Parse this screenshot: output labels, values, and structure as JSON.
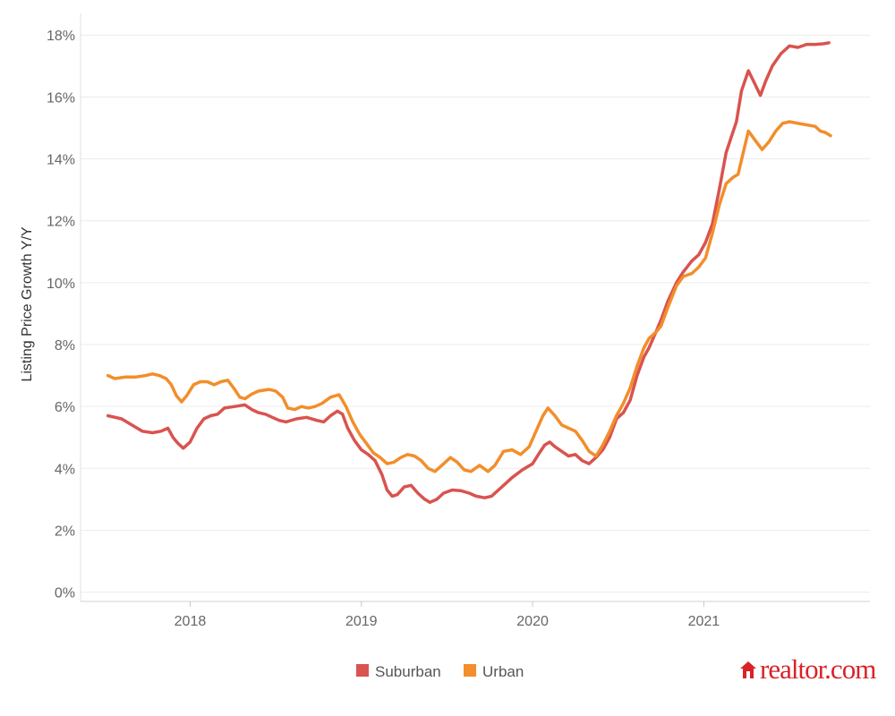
{
  "chart_data": {
    "type": "line",
    "title": "",
    "xlabel": "",
    "ylabel": "Listing Price Growth Y/Y",
    "xlim": [
      2017.36,
      2021.97
    ],
    "ylim": [
      -0.3,
      18.7
    ],
    "x_ticks": [
      {
        "value": 2018.0,
        "label": "2018"
      },
      {
        "value": 2019.0,
        "label": "2019"
      },
      {
        "value": 2020.0,
        "label": "2020"
      },
      {
        "value": 2021.0,
        "label": "2021"
      }
    ],
    "y_ticks": [
      {
        "value": 0,
        "label": "0%"
      },
      {
        "value": 2,
        "label": "2%"
      },
      {
        "value": 4,
        "label": "4%"
      },
      {
        "value": 6,
        "label": "6%"
      },
      {
        "value": 8,
        "label": "8%"
      },
      {
        "value": 10,
        "label": "10%"
      },
      {
        "value": 12,
        "label": "12%"
      },
      {
        "value": 14,
        "label": "14%"
      },
      {
        "value": 16,
        "label": "16%"
      },
      {
        "value": 18,
        "label": "18%"
      }
    ],
    "grid": true,
    "legend": "bottom-center",
    "series": [
      {
        "name": "Suburban",
        "color": "#d9534f",
        "points": [
          [
            2017.52,
            5.7
          ],
          [
            2017.6,
            5.6
          ],
          [
            2017.66,
            5.4
          ],
          [
            2017.72,
            5.2
          ],
          [
            2017.78,
            5.15
          ],
          [
            2017.83,
            5.2
          ],
          [
            2017.87,
            5.3
          ],
          [
            2017.9,
            5.0
          ],
          [
            2017.93,
            4.8
          ],
          [
            2017.96,
            4.65
          ],
          [
            2018.0,
            4.85
          ],
          [
            2018.04,
            5.3
          ],
          [
            2018.08,
            5.6
          ],
          [
            2018.12,
            5.7
          ],
          [
            2018.16,
            5.75
          ],
          [
            2018.2,
            5.95
          ],
          [
            2018.26,
            6.0
          ],
          [
            2018.32,
            6.05
          ],
          [
            2018.36,
            5.9
          ],
          [
            2018.4,
            5.8
          ],
          [
            2018.44,
            5.75
          ],
          [
            2018.48,
            5.65
          ],
          [
            2018.52,
            5.55
          ],
          [
            2018.56,
            5.5
          ],
          [
            2018.62,
            5.6
          ],
          [
            2018.68,
            5.65
          ],
          [
            2018.74,
            5.55
          ],
          [
            2018.78,
            5.5
          ],
          [
            2018.82,
            5.7
          ],
          [
            2018.86,
            5.85
          ],
          [
            2018.89,
            5.75
          ],
          [
            2018.92,
            5.3
          ],
          [
            2018.96,
            4.9
          ],
          [
            2019.0,
            4.6
          ],
          [
            2019.04,
            4.45
          ],
          [
            2019.08,
            4.25
          ],
          [
            2019.12,
            3.8
          ],
          [
            2019.15,
            3.3
          ],
          [
            2019.18,
            3.1
          ],
          [
            2019.21,
            3.15
          ],
          [
            2019.25,
            3.4
          ],
          [
            2019.29,
            3.45
          ],
          [
            2019.33,
            3.2
          ],
          [
            2019.37,
            3.0
          ],
          [
            2019.4,
            2.9
          ],
          [
            2019.44,
            3.0
          ],
          [
            2019.48,
            3.2
          ],
          [
            2019.53,
            3.3
          ],
          [
            2019.58,
            3.28
          ],
          [
            2019.63,
            3.2
          ],
          [
            2019.67,
            3.1
          ],
          [
            2019.72,
            3.05
          ],
          [
            2019.76,
            3.1
          ],
          [
            2019.82,
            3.4
          ],
          [
            2019.88,
            3.7
          ],
          [
            2019.94,
            3.95
          ],
          [
            2020.0,
            4.15
          ],
          [
            2020.04,
            4.5
          ],
          [
            2020.07,
            4.75
          ],
          [
            2020.1,
            4.85
          ],
          [
            2020.13,
            4.7
          ],
          [
            2020.17,
            4.55
          ],
          [
            2020.21,
            4.4
          ],
          [
            2020.25,
            4.45
          ],
          [
            2020.29,
            4.25
          ],
          [
            2020.33,
            4.15
          ],
          [
            2020.37,
            4.35
          ],
          [
            2020.41,
            4.6
          ],
          [
            2020.45,
            5.0
          ],
          [
            2020.49,
            5.6
          ],
          [
            2020.53,
            5.8
          ],
          [
            2020.57,
            6.2
          ],
          [
            2020.61,
            7.0
          ],
          [
            2020.65,
            7.6
          ],
          [
            2020.68,
            7.9
          ],
          [
            2020.72,
            8.4
          ],
          [
            2020.75,
            8.8
          ],
          [
            2020.79,
            9.4
          ],
          [
            2020.84,
            10.0
          ],
          [
            2020.88,
            10.35
          ],
          [
            2020.93,
            10.7
          ],
          [
            2020.97,
            10.9
          ],
          [
            2021.01,
            11.3
          ],
          [
            2021.05,
            11.9
          ],
          [
            2021.09,
            13.0
          ],
          [
            2021.13,
            14.2
          ],
          [
            2021.16,
            14.7
          ],
          [
            2021.19,
            15.2
          ],
          [
            2021.22,
            16.2
          ],
          [
            2021.26,
            16.85
          ],
          [
            2021.3,
            16.4
          ],
          [
            2021.33,
            16.05
          ],
          [
            2021.36,
            16.5
          ],
          [
            2021.4,
            17.0
          ],
          [
            2021.45,
            17.4
          ],
          [
            2021.5,
            17.65
          ],
          [
            2021.55,
            17.6
          ],
          [
            2021.6,
            17.7
          ],
          [
            2021.65,
            17.7
          ],
          [
            2021.7,
            17.72
          ],
          [
            2021.73,
            17.75
          ]
        ]
      },
      {
        "name": "Urban",
        "color": "#f28e2b",
        "points": [
          [
            2017.52,
            7.0
          ],
          [
            2017.56,
            6.9
          ],
          [
            2017.62,
            6.95
          ],
          [
            2017.68,
            6.95
          ],
          [
            2017.74,
            7.0
          ],
          [
            2017.78,
            7.05
          ],
          [
            2017.82,
            7.0
          ],
          [
            2017.86,
            6.9
          ],
          [
            2017.89,
            6.7
          ],
          [
            2017.92,
            6.35
          ],
          [
            2017.95,
            6.15
          ],
          [
            2017.98,
            6.35
          ],
          [
            2018.02,
            6.7
          ],
          [
            2018.06,
            6.8
          ],
          [
            2018.1,
            6.8
          ],
          [
            2018.14,
            6.7
          ],
          [
            2018.18,
            6.8
          ],
          [
            2018.22,
            6.85
          ],
          [
            2018.26,
            6.55
          ],
          [
            2018.29,
            6.3
          ],
          [
            2018.32,
            6.25
          ],
          [
            2018.36,
            6.4
          ],
          [
            2018.4,
            6.5
          ],
          [
            2018.46,
            6.55
          ],
          [
            2018.5,
            6.5
          ],
          [
            2018.54,
            6.3
          ],
          [
            2018.57,
            5.95
          ],
          [
            2018.61,
            5.9
          ],
          [
            2018.65,
            6.0
          ],
          [
            2018.69,
            5.95
          ],
          [
            2018.73,
            6.0
          ],
          [
            2018.77,
            6.1
          ],
          [
            2018.82,
            6.3
          ],
          [
            2018.87,
            6.38
          ],
          [
            2018.91,
            6.0
          ],
          [
            2018.95,
            5.5
          ],
          [
            2018.99,
            5.1
          ],
          [
            2019.03,
            4.8
          ],
          [
            2019.07,
            4.5
          ],
          [
            2019.11,
            4.35
          ],
          [
            2019.15,
            4.15
          ],
          [
            2019.19,
            4.2
          ],
          [
            2019.23,
            4.35
          ],
          [
            2019.27,
            4.45
          ],
          [
            2019.31,
            4.4
          ],
          [
            2019.35,
            4.25
          ],
          [
            2019.39,
            4.0
          ],
          [
            2019.43,
            3.9
          ],
          [
            2019.47,
            4.1
          ],
          [
            2019.52,
            4.35
          ],
          [
            2019.56,
            4.2
          ],
          [
            2019.6,
            3.95
          ],
          [
            2019.64,
            3.9
          ],
          [
            2019.69,
            4.1
          ],
          [
            2019.74,
            3.9
          ],
          [
            2019.78,
            4.1
          ],
          [
            2019.83,
            4.55
          ],
          [
            2019.88,
            4.6
          ],
          [
            2019.93,
            4.45
          ],
          [
            2019.98,
            4.7
          ],
          [
            2020.02,
            5.2
          ],
          [
            2020.06,
            5.7
          ],
          [
            2020.09,
            5.95
          ],
          [
            2020.13,
            5.7
          ],
          [
            2020.17,
            5.4
          ],
          [
            2020.21,
            5.3
          ],
          [
            2020.25,
            5.2
          ],
          [
            2020.29,
            4.9
          ],
          [
            2020.33,
            4.55
          ],
          [
            2020.37,
            4.4
          ],
          [
            2020.41,
            4.75
          ],
          [
            2020.45,
            5.2
          ],
          [
            2020.49,
            5.7
          ],
          [
            2020.53,
            6.1
          ],
          [
            2020.57,
            6.6
          ],
          [
            2020.61,
            7.3
          ],
          [
            2020.65,
            7.9
          ],
          [
            2020.68,
            8.2
          ],
          [
            2020.72,
            8.4
          ],
          [
            2020.75,
            8.6
          ],
          [
            2020.79,
            9.2
          ],
          [
            2020.84,
            9.9
          ],
          [
            2020.88,
            10.2
          ],
          [
            2020.93,
            10.3
          ],
          [
            2020.97,
            10.5
          ],
          [
            2021.01,
            10.8
          ],
          [
            2021.05,
            11.6
          ],
          [
            2021.09,
            12.5
          ],
          [
            2021.13,
            13.2
          ],
          [
            2021.17,
            13.4
          ],
          [
            2021.2,
            13.5
          ],
          [
            2021.23,
            14.2
          ],
          [
            2021.26,
            14.9
          ],
          [
            2021.3,
            14.6
          ],
          [
            2021.34,
            14.3
          ],
          [
            2021.38,
            14.55
          ],
          [
            2021.42,
            14.9
          ],
          [
            2021.46,
            15.15
          ],
          [
            2021.5,
            15.2
          ],
          [
            2021.55,
            15.15
          ],
          [
            2021.6,
            15.1
          ],
          [
            2021.65,
            15.05
          ],
          [
            2021.68,
            14.9
          ],
          [
            2021.71,
            14.85
          ],
          [
            2021.74,
            14.75
          ]
        ]
      }
    ]
  },
  "logo": {
    "text": "realtor.com",
    "color": "#d92228"
  }
}
